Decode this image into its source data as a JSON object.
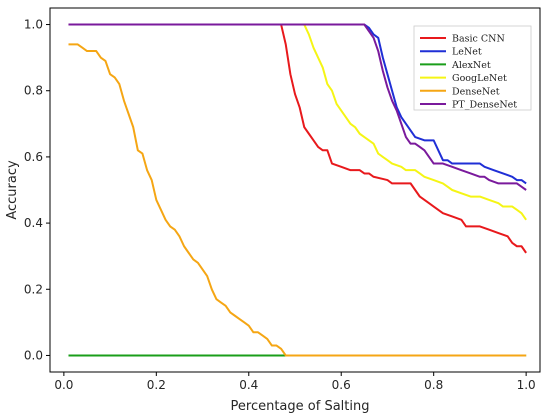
{
  "chart_data": {
    "type": "line",
    "xlabel": "Percentage of Salting",
    "ylabel": "Accuracy",
    "xlim": [
      -0.03,
      1.03
    ],
    "ylim": [
      -0.05,
      1.05
    ],
    "xticks": [
      "0.0",
      "0.2",
      "0.4",
      "0.6",
      "0.8",
      "1.0"
    ],
    "yticks": [
      "0.0",
      "0.2",
      "0.4",
      "0.6",
      "0.8",
      "1.0"
    ],
    "grid": false,
    "legend_position": "top-right",
    "series": [
      {
        "name": "Basic CNN",
        "color": "#e8191c",
        "points": [
          [
            0.01,
            1.0
          ],
          [
            0.47,
            1.0
          ],
          [
            0.48,
            0.94
          ],
          [
            0.49,
            0.85
          ],
          [
            0.5,
            0.79
          ],
          [
            0.51,
            0.75
          ],
          [
            0.52,
            0.69
          ],
          [
            0.53,
            0.67
          ],
          [
            0.54,
            0.65
          ],
          [
            0.55,
            0.63
          ],
          [
            0.56,
            0.62
          ],
          [
            0.57,
            0.62
          ],
          [
            0.58,
            0.58
          ],
          [
            0.6,
            0.57
          ],
          [
            0.62,
            0.56
          ],
          [
            0.64,
            0.56
          ],
          [
            0.65,
            0.55
          ],
          [
            0.66,
            0.55
          ],
          [
            0.67,
            0.54
          ],
          [
            0.7,
            0.53
          ],
          [
            0.71,
            0.52
          ],
          [
            0.75,
            0.52
          ],
          [
            0.76,
            0.5
          ],
          [
            0.77,
            0.48
          ],
          [
            0.79,
            0.46
          ],
          [
            0.8,
            0.45
          ],
          [
            0.82,
            0.43
          ],
          [
            0.84,
            0.42
          ],
          [
            0.86,
            0.41
          ],
          [
            0.87,
            0.39
          ],
          [
            0.9,
            0.39
          ],
          [
            0.92,
            0.38
          ],
          [
            0.94,
            0.37
          ],
          [
            0.96,
            0.36
          ],
          [
            0.97,
            0.34
          ],
          [
            0.98,
            0.33
          ],
          [
            0.99,
            0.33
          ],
          [
            1.0,
            0.31
          ]
        ]
      },
      {
        "name": "LeNet",
        "color": "#1f2fd6",
        "points": [
          [
            0.01,
            1.0
          ],
          [
            0.65,
            1.0
          ],
          [
            0.66,
            0.99
          ],
          [
            0.67,
            0.97
          ],
          [
            0.68,
            0.96
          ],
          [
            0.69,
            0.9
          ],
          [
            0.7,
            0.85
          ],
          [
            0.71,
            0.8
          ],
          [
            0.72,
            0.75
          ],
          [
            0.73,
            0.72
          ],
          [
            0.74,
            0.7
          ],
          [
            0.75,
            0.68
          ],
          [
            0.76,
            0.66
          ],
          [
            0.78,
            0.65
          ],
          [
            0.8,
            0.65
          ],
          [
            0.81,
            0.62
          ],
          [
            0.82,
            0.59
          ],
          [
            0.83,
            0.59
          ],
          [
            0.84,
            0.58
          ],
          [
            0.86,
            0.58
          ],
          [
            0.88,
            0.58
          ],
          [
            0.9,
            0.58
          ],
          [
            0.91,
            0.57
          ],
          [
            0.93,
            0.56
          ],
          [
            0.95,
            0.55
          ],
          [
            0.97,
            0.54
          ],
          [
            0.98,
            0.53
          ],
          [
            0.99,
            0.53
          ],
          [
            1.0,
            0.52
          ]
        ]
      },
      {
        "name": "AlexNet",
        "color": "#1a9e1a",
        "points": [
          [
            0.01,
            0.0
          ],
          [
            1.0,
            0.0
          ]
        ]
      },
      {
        "name": "GoogLeNet",
        "color": "#f5f515",
        "points": [
          [
            0.52,
            1.0
          ],
          [
            0.53,
            0.97
          ],
          [
            0.54,
            0.93
          ],
          [
            0.56,
            0.87
          ],
          [
            0.57,
            0.82
          ],
          [
            0.58,
            0.8
          ],
          [
            0.59,
            0.76
          ],
          [
            0.6,
            0.74
          ],
          [
            0.61,
            0.72
          ],
          [
            0.62,
            0.7
          ],
          [
            0.63,
            0.69
          ],
          [
            0.64,
            0.67
          ],
          [
            0.65,
            0.66
          ],
          [
            0.67,
            0.64
          ],
          [
            0.68,
            0.61
          ],
          [
            0.69,
            0.6
          ],
          [
            0.7,
            0.59
          ],
          [
            0.71,
            0.58
          ],
          [
            0.73,
            0.57
          ],
          [
            0.74,
            0.56
          ],
          [
            0.76,
            0.56
          ],
          [
            0.77,
            0.55
          ],
          [
            0.78,
            0.54
          ],
          [
            0.8,
            0.53
          ],
          [
            0.82,
            0.52
          ],
          [
            0.83,
            0.51
          ],
          [
            0.84,
            0.5
          ],
          [
            0.86,
            0.49
          ],
          [
            0.88,
            0.48
          ],
          [
            0.9,
            0.48
          ],
          [
            0.92,
            0.47
          ],
          [
            0.94,
            0.46
          ],
          [
            0.95,
            0.45
          ],
          [
            0.97,
            0.45
          ],
          [
            0.98,
            0.44
          ],
          [
            0.99,
            0.43
          ],
          [
            1.0,
            0.41
          ]
        ]
      },
      {
        "name": "DenseNet",
        "color": "#f5a614",
        "points": [
          [
            0.01,
            0.94
          ],
          [
            0.02,
            0.94
          ],
          [
            0.03,
            0.94
          ],
          [
            0.04,
            0.93
          ],
          [
            0.05,
            0.92
          ],
          [
            0.07,
            0.92
          ],
          [
            0.08,
            0.9
          ],
          [
            0.09,
            0.89
          ],
          [
            0.1,
            0.85
          ],
          [
            0.11,
            0.84
          ],
          [
            0.12,
            0.82
          ],
          [
            0.13,
            0.77
          ],
          [
            0.14,
            0.73
          ],
          [
            0.15,
            0.69
          ],
          [
            0.16,
            0.62
          ],
          [
            0.17,
            0.61
          ],
          [
            0.18,
            0.56
          ],
          [
            0.19,
            0.53
          ],
          [
            0.2,
            0.47
          ],
          [
            0.21,
            0.44
          ],
          [
            0.22,
            0.41
          ],
          [
            0.23,
            0.39
          ],
          [
            0.24,
            0.38
          ],
          [
            0.25,
            0.36
          ],
          [
            0.26,
            0.33
          ],
          [
            0.27,
            0.31
          ],
          [
            0.28,
            0.29
          ],
          [
            0.29,
            0.28
          ],
          [
            0.3,
            0.26
          ],
          [
            0.31,
            0.24
          ],
          [
            0.32,
            0.2
          ],
          [
            0.33,
            0.17
          ],
          [
            0.34,
            0.16
          ],
          [
            0.35,
            0.15
          ],
          [
            0.36,
            0.13
          ],
          [
            0.37,
            0.12
          ],
          [
            0.38,
            0.11
          ],
          [
            0.39,
            0.1
          ],
          [
            0.4,
            0.09
          ],
          [
            0.41,
            0.07
          ],
          [
            0.42,
            0.07
          ],
          [
            0.43,
            0.06
          ],
          [
            0.44,
            0.05
          ],
          [
            0.45,
            0.03
          ],
          [
            0.46,
            0.03
          ],
          [
            0.47,
            0.02
          ],
          [
            0.48,
            0.0
          ],
          [
            1.0,
            0.0
          ]
        ]
      },
      {
        "name": "PT_DenseNet",
        "color": "#7a1a9c",
        "points": [
          [
            0.01,
            1.0
          ],
          [
            0.65,
            1.0
          ],
          [
            0.66,
            0.98
          ],
          [
            0.67,
            0.96
          ],
          [
            0.68,
            0.92
          ],
          [
            0.69,
            0.86
          ],
          [
            0.7,
            0.81
          ],
          [
            0.71,
            0.77
          ],
          [
            0.72,
            0.74
          ],
          [
            0.73,
            0.7
          ],
          [
            0.74,
            0.66
          ],
          [
            0.75,
            0.64
          ],
          [
            0.76,
            0.64
          ],
          [
            0.77,
            0.63
          ],
          [
            0.78,
            0.62
          ],
          [
            0.79,
            0.6
          ],
          [
            0.8,
            0.58
          ],
          [
            0.82,
            0.58
          ],
          [
            0.84,
            0.57
          ],
          [
            0.86,
            0.56
          ],
          [
            0.88,
            0.55
          ],
          [
            0.9,
            0.54
          ],
          [
            0.91,
            0.54
          ],
          [
            0.92,
            0.53
          ],
          [
            0.94,
            0.52
          ],
          [
            0.96,
            0.52
          ],
          [
            0.98,
            0.52
          ],
          [
            0.99,
            0.51
          ],
          [
            1.0,
            0.5
          ]
        ]
      }
    ]
  }
}
